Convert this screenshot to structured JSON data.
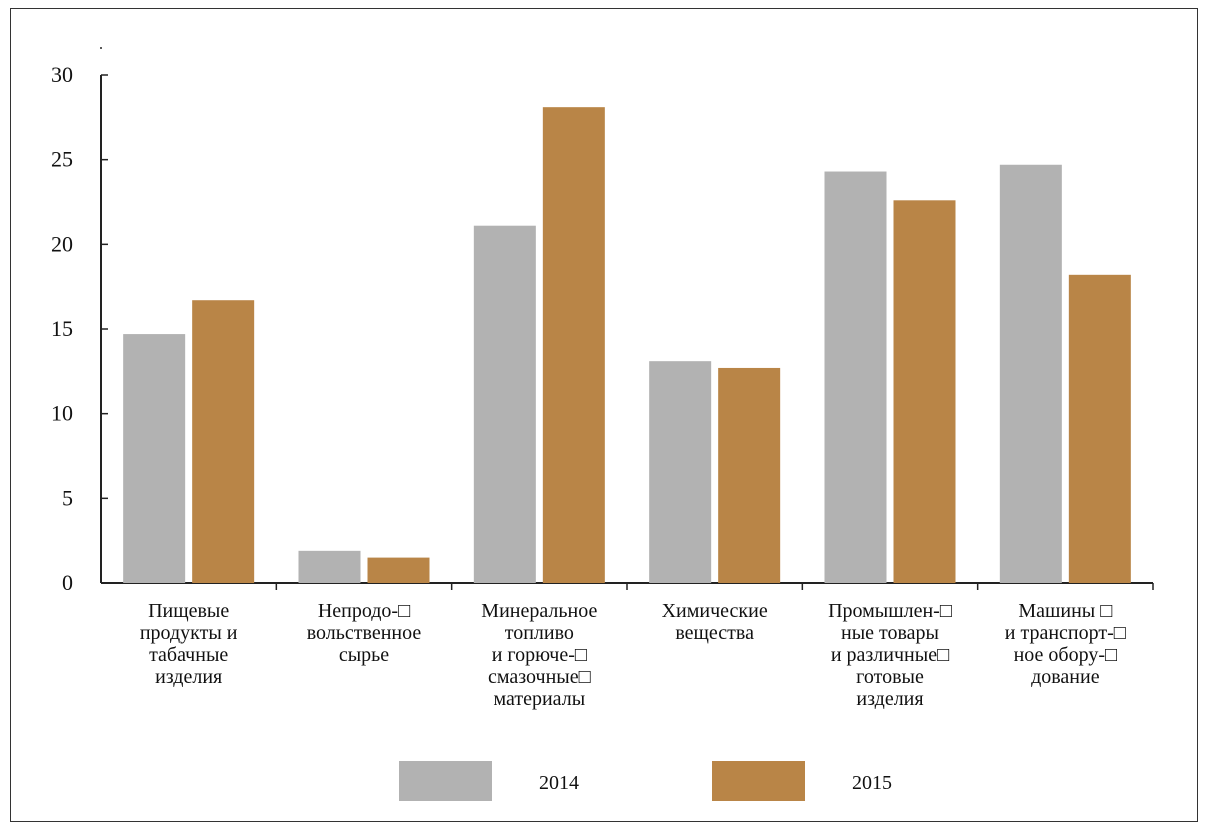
{
  "chart_data": {
    "type": "bar",
    "categories": [
      [
        "Пищевые",
        "продукты и",
        "табачные",
        "изделия"
      ],
      [
        "Непродо-□",
        "вольственное",
        "сырье"
      ],
      [
        "Минеральное",
        "топливо",
        "и горюче-□",
        "смазочные□",
        "материалы"
      ],
      [
        "Химические",
        "вещества"
      ],
      [
        "Промышлен-□",
        "ные товары",
        "и различные□",
        "готовые",
        "изделия"
      ],
      [
        "Машины □",
        "и транспорт-□",
        "ное обору-□",
        "дование"
      ]
    ],
    "series": [
      {
        "name": "2014",
        "color": "#b2b2b2",
        "values": [
          14.7,
          1.9,
          21.1,
          13.1,
          24.3,
          24.7
        ]
      },
      {
        "name": "2015",
        "color": "#b98547",
        "values": [
          16.7,
          1.5,
          28.1,
          12.7,
          22.6,
          18.2
        ]
      }
    ],
    "yticks": [
      0,
      5,
      10,
      15,
      20,
      25,
      30
    ],
    "ylim": [
      0,
      30
    ],
    "grid": false,
    "legend_position": "bottom-center"
  }
}
